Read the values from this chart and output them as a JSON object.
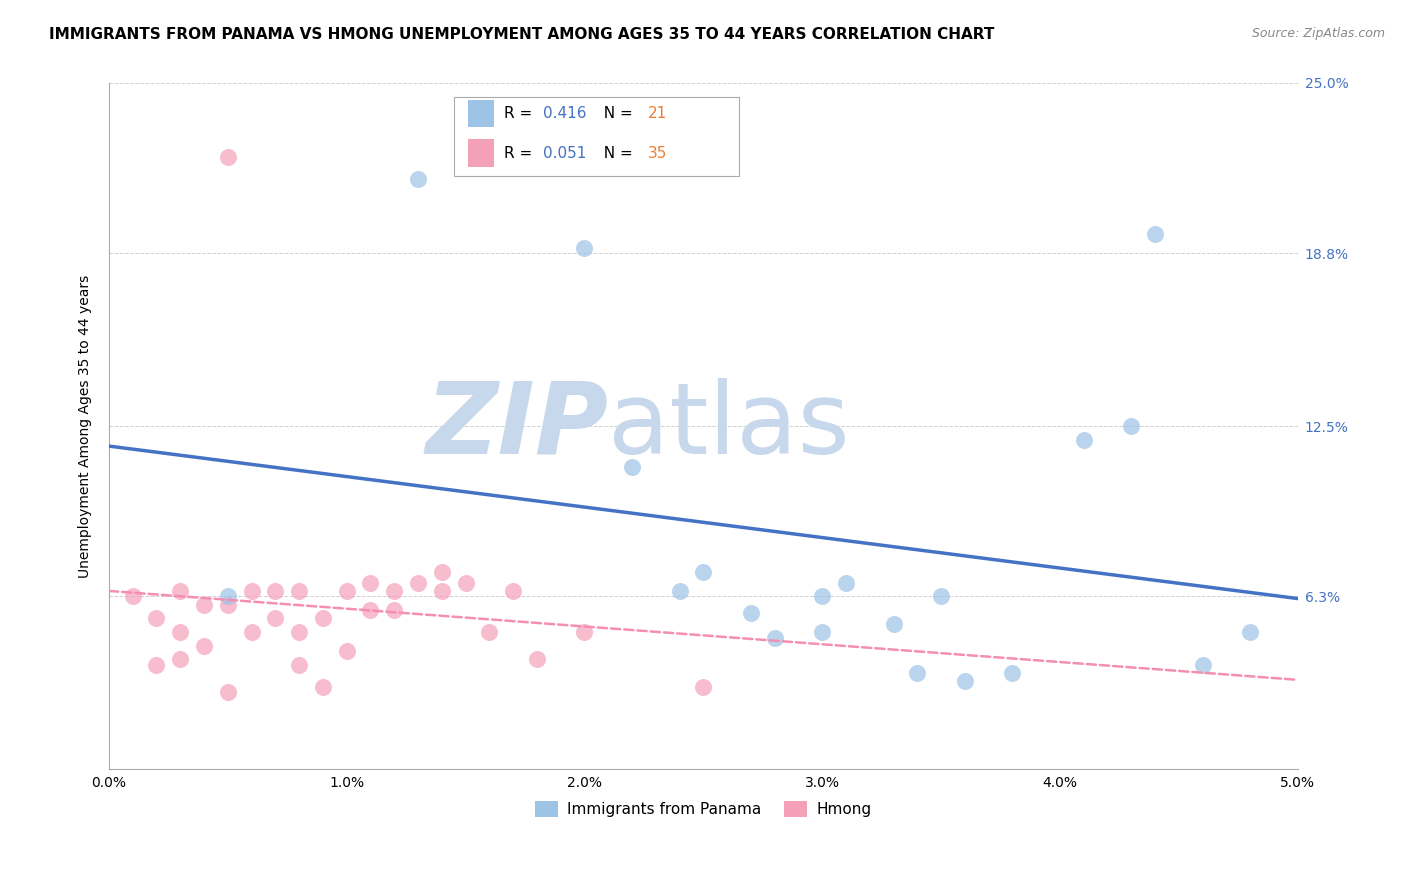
{
  "title": "IMMIGRANTS FROM PANAMA VS HMONG UNEMPLOYMENT AMONG AGES 35 TO 44 YEARS CORRELATION CHART",
  "source": "Source: ZipAtlas.com",
  "ylabel": "Unemployment Among Ages 35 to 44 years",
  "xlim": [
    0.0,
    0.05
  ],
  "ylim": [
    0.0,
    0.25
  ],
  "xtick_vals": [
    0.0,
    0.01,
    0.02,
    0.03,
    0.04,
    0.05
  ],
  "xtick_labels": [
    "0.0%",
    "1.0%",
    "2.0%",
    "3.0%",
    "4.0%",
    "5.0%"
  ],
  "ytick_vals": [
    0.063,
    0.125,
    0.188,
    0.25
  ],
  "ytick_labels": [
    "6.3%",
    "12.5%",
    "18.8%",
    "25.0%"
  ],
  "watermark_zip": "ZIP",
  "watermark_atlas": "atlas",
  "legend_blue_R": "0.416",
  "legend_blue_N": "21",
  "legend_pink_R": "0.051",
  "legend_pink_N": "35",
  "label_blue": "Immigrants from Panama",
  "label_pink": "Hmong",
  "blue_scatter_x": [
    0.005,
    0.013,
    0.02,
    0.022,
    0.024,
    0.025,
    0.027,
    0.028,
    0.03,
    0.03,
    0.031,
    0.033,
    0.034,
    0.035,
    0.036,
    0.038,
    0.041,
    0.043,
    0.044,
    0.046,
    0.048
  ],
  "blue_scatter_y": [
    0.063,
    0.215,
    0.19,
    0.11,
    0.065,
    0.072,
    0.057,
    0.048,
    0.063,
    0.05,
    0.068,
    0.053,
    0.035,
    0.063,
    0.032,
    0.035,
    0.12,
    0.125,
    0.195,
    0.038,
    0.05
  ],
  "pink_scatter_x": [
    0.001,
    0.002,
    0.002,
    0.003,
    0.003,
    0.003,
    0.004,
    0.004,
    0.005,
    0.005,
    0.006,
    0.006,
    0.007,
    0.007,
    0.008,
    0.008,
    0.008,
    0.009,
    0.009,
    0.01,
    0.01,
    0.011,
    0.011,
    0.012,
    0.012,
    0.013,
    0.014,
    0.014,
    0.015,
    0.016,
    0.017,
    0.018,
    0.02,
    0.025,
    0.005
  ],
  "pink_scatter_y": [
    0.063,
    0.055,
    0.038,
    0.065,
    0.05,
    0.04,
    0.06,
    0.045,
    0.06,
    0.028,
    0.065,
    0.05,
    0.065,
    0.055,
    0.065,
    0.05,
    0.038,
    0.055,
    0.03,
    0.065,
    0.043,
    0.068,
    0.058,
    0.065,
    0.058,
    0.068,
    0.072,
    0.065,
    0.068,
    0.05,
    0.065,
    0.04,
    0.05,
    0.03,
    0.223
  ],
  "blue_color": "#4472c4",
  "pink_color": "#f48fb1",
  "blue_scatter_color": "#9dc3e6",
  "pink_scatter_color": "#f4a0b8",
  "grid_color": "#cccccc",
  "title_fontsize": 11,
  "axis_label_fontsize": 10,
  "tick_fontsize": 10,
  "right_tick_color": "#4472c4",
  "watermark_color_zip": "#c8d8ec",
  "watermark_color_atlas": "#c8d8ec"
}
